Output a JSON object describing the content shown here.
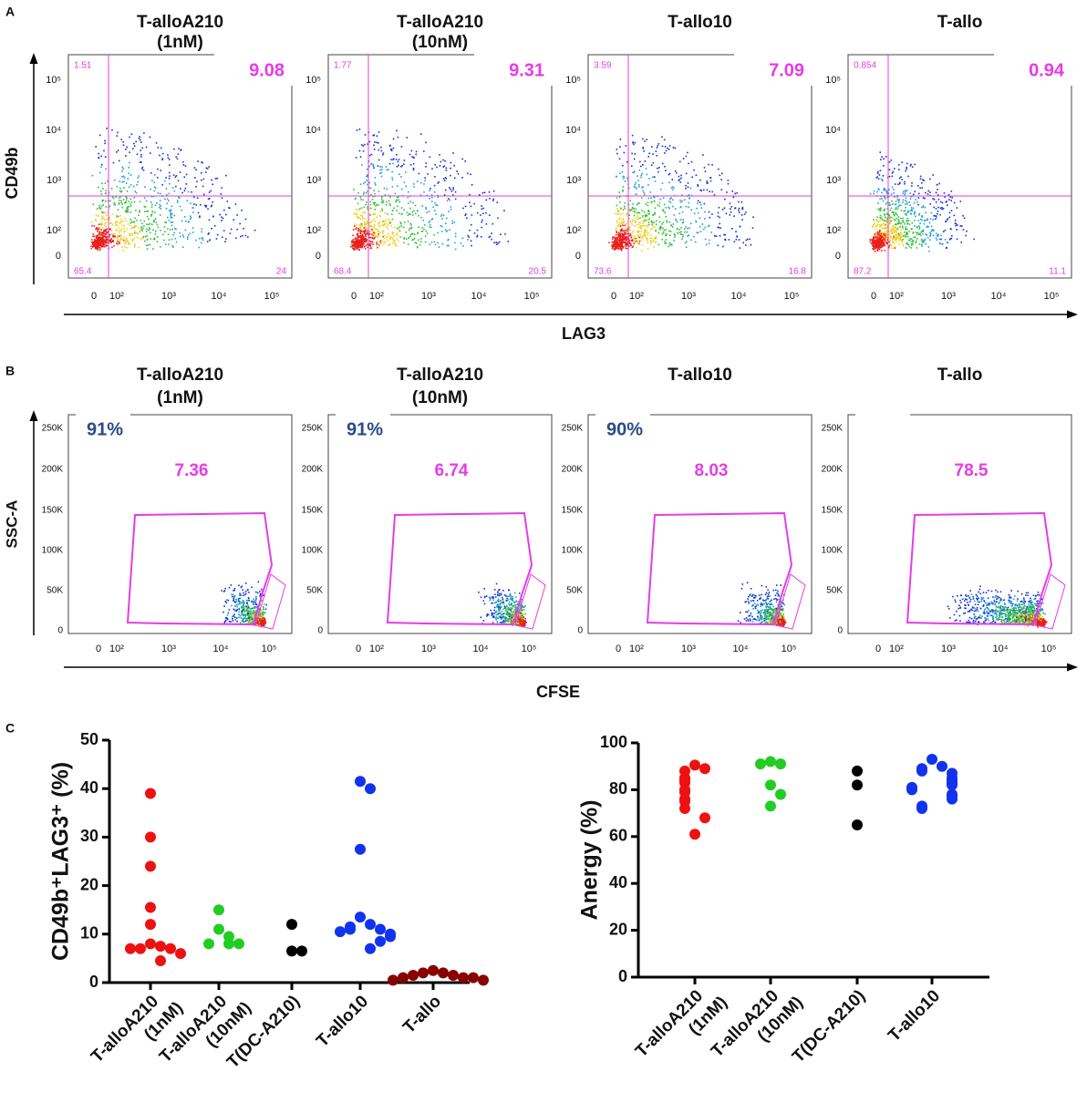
{
  "panel_a": {
    "label": "A",
    "y_axis_label": "CD49b",
    "x_axis_label": "LAG3",
    "y_tick_labels": [
      "10⁵",
      "10⁴",
      "10³",
      "10²",
      "0"
    ],
    "x_tick_labels": [
      "0",
      "10²",
      "10³",
      "10⁴",
      "10⁵"
    ],
    "plots": [
      {
        "title": [
          "T-alloA210",
          "(1nM)"
        ],
        "upper_left": 1.51,
        "upper_right": 9.08,
        "lower_left": 65.4,
        "lower_right": 24
      },
      {
        "title": [
          "T-alloA210",
          "(10nM)"
        ],
        "upper_left": 1.77,
        "upper_right": 9.31,
        "lower_left": 68.4,
        "lower_right": 20.5
      },
      {
        "title": [
          "T-allo10"
        ],
        "upper_left": 3.59,
        "upper_right": 7.09,
        "lower_left": 73.6,
        "lower_right": 16.8
      },
      {
        "title": [
          "T-allo"
        ],
        "upper_left": 0.854,
        "upper_right": 0.94,
        "lower_left": 87.2,
        "lower_right": 11.1
      }
    ]
  },
  "panel_b": {
    "label": "B",
    "y_axis_label": "SSC-A",
    "x_axis_label": "CFSE",
    "y_tick_labels": [
      "250K",
      "200K",
      "150K",
      "100K",
      "50K",
      "0"
    ],
    "x_tick_labels": [
      "0",
      "10²",
      "10³",
      "10⁴",
      "10⁵"
    ],
    "plots": [
      {
        "title": [
          "T-alloA210",
          "(1nM)"
        ],
        "viable": "91%",
        "gate": 7.36
      },
      {
        "title": [
          "T-alloA210",
          "(10nM)"
        ],
        "viable": "91%",
        "gate": 6.74
      },
      {
        "title": [
          "T-allo10"
        ],
        "viable": "90%",
        "gate": 8.03
      },
      {
        "title": [
          "T-allo"
        ],
        "gate": 78.5
      }
    ]
  },
  "panel_c": {
    "label": "C"
  },
  "chart_data": [
    {
      "type": "strip",
      "ylabel": "CD49b⁺LAG3⁺ (%)",
      "categories": [
        [
          "T-alloA210",
          "(1nM)"
        ],
        [
          "T-alloA210",
          "(10nM)"
        ],
        [
          "T(DC-A210)"
        ],
        [
          "T-allo10"
        ],
        [
          "T-allo"
        ]
      ],
      "colors": [
        "#ee1111",
        "#22cc22",
        "#000000",
        "#1133ee",
        "#880000"
      ],
      "values": [
        [
          39,
          30,
          24,
          15.5,
          12,
          8,
          7.5,
          7,
          7,
          7,
          6,
          4.5
        ],
        [
          15,
          11,
          9.5,
          8,
          8,
          8
        ],
        [
          12,
          6.5,
          6.5
        ],
        [
          41.5,
          40,
          27.5,
          13.5,
          12,
          11.5,
          11,
          11,
          10.5,
          10,
          9.5,
          8.5,
          7
        ],
        [
          2.5,
          2,
          2,
          1.5,
          1.5,
          1,
          1,
          1,
          0.5,
          0.5
        ]
      ],
      "ylim": [
        0,
        50
      ],
      "yticks": [
        0,
        10,
        20,
        30,
        40,
        50
      ]
    },
    {
      "type": "strip",
      "ylabel": "Anergy (%)",
      "categories": [
        [
          "T-alloA210",
          "(1nM)"
        ],
        [
          "T-alloA210",
          "(10nM)"
        ],
        [
          "T(DC-A210)"
        ],
        [
          "T-allo10"
        ]
      ],
      "colors": [
        "#ee1111",
        "#22cc22",
        "#000000",
        "#1133ee"
      ],
      "values": [
        [
          90.5,
          89,
          88,
          85,
          84,
          83,
          80,
          79,
          76,
          75,
          72,
          68,
          61
        ],
        [
          92,
          91,
          91,
          82,
          78,
          73
        ],
        [
          88,
          82,
          65
        ],
        [
          93,
          90,
          89,
          88,
          87,
          85,
          84,
          83,
          82,
          81,
          80,
          78,
          77,
          76,
          73,
          72
        ]
      ],
      "ylim": [
        0,
        100
      ],
      "yticks": [
        0,
        20,
        40,
        60,
        80,
        100
      ]
    }
  ]
}
